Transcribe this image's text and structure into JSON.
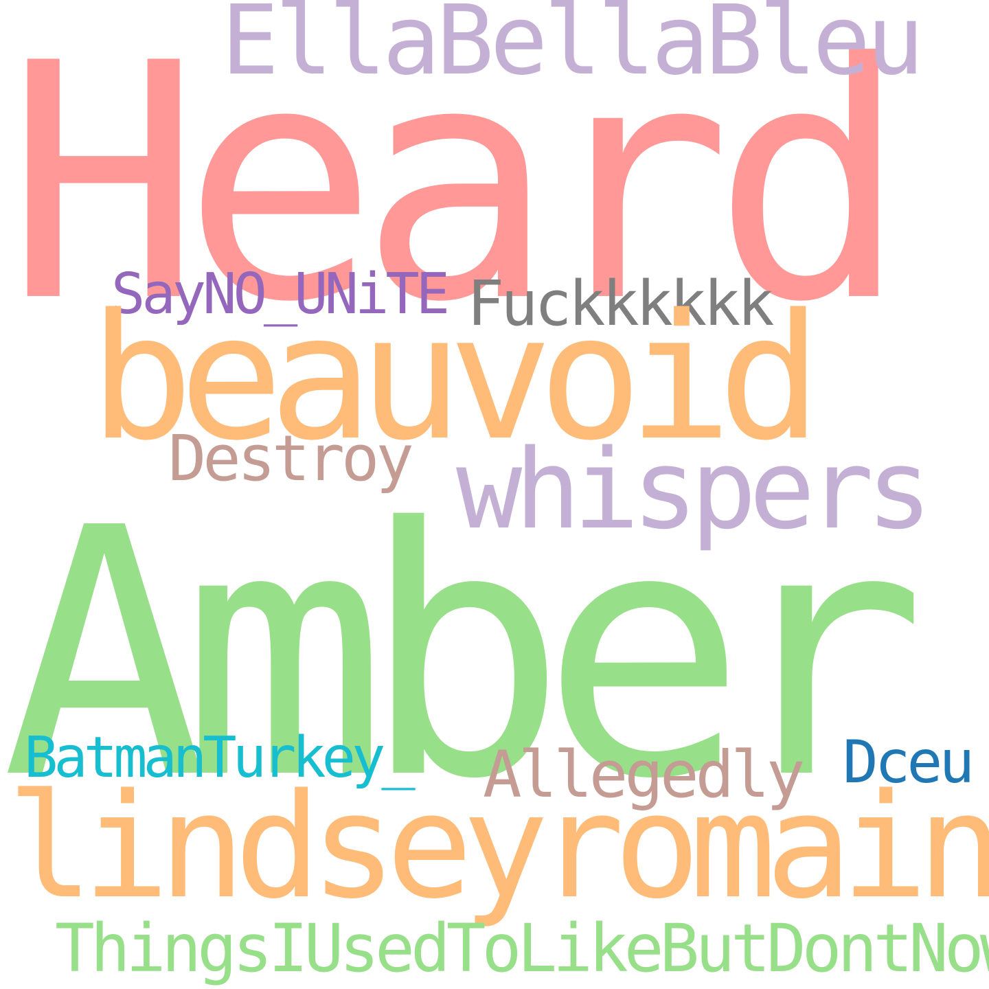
{
  "word_cloud": {
    "words": [
      {
        "id": "heard",
        "text": "Heard",
        "color": "#ff9896"
      },
      {
        "id": "ella",
        "text": "EllaBellaBleu",
        "color": "#c5b0d5"
      },
      {
        "id": "beauvoid",
        "text": "beauvoid",
        "color": "#ffbb78"
      },
      {
        "id": "sayno",
        "text": "SayNO_UNiTE",
        "color": "#9467bd"
      },
      {
        "id": "fuck",
        "text": "Fuckkkkkk",
        "color": "#7f7f7f"
      },
      {
        "id": "destroy",
        "text": "Destroy",
        "color": "#c49c94"
      },
      {
        "id": "whispers",
        "text": "whispers",
        "color": "#c5b0d5"
      },
      {
        "id": "amber",
        "text": "Amber",
        "color": "#98df8a"
      },
      {
        "id": "batman",
        "text": "BatmanTurkey_",
        "color": "#17becf"
      },
      {
        "id": "alleg",
        "text": "Allegedly",
        "color": "#c49c94"
      },
      {
        "id": "dceu",
        "text": "Dceu",
        "color": "#1f77b4"
      },
      {
        "id": "lindsey",
        "text": "lindseyromain",
        "color": "#ffbb78"
      },
      {
        "id": "things",
        "text": "ThingsIUsedToLikeButDontNow",
        "color": "#98df8a"
      }
    ]
  }
}
